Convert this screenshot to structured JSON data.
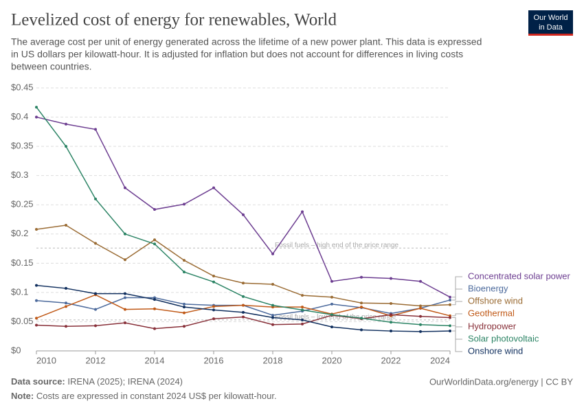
{
  "chart_data": {
    "type": "line",
    "title": "Levelized cost of energy for renewables, World",
    "subtitle": [
      "The average cost per unit of energy generated across the lifetime of a new power plant. This data is expressed",
      "in US dollars per kilowatt-hour. It is adjusted for inflation but does not account for differences in living costs",
      "between countries."
    ],
    "logo": [
      "Our World",
      "in Data"
    ],
    "x": [
      2010,
      2011,
      2012,
      2013,
      2014,
      2015,
      2016,
      2017,
      2018,
      2019,
      2020,
      2021,
      2022,
      2023,
      2024
    ],
    "xlim": [
      2010,
      2024
    ],
    "xticks": [
      2010,
      2012,
      2014,
      2016,
      2018,
      2020,
      2022,
      2024
    ],
    "ylim": [
      0,
      0.45
    ],
    "yticks": [
      {
        "value": 0,
        "label": "$0"
      },
      {
        "value": 0.05,
        "label": "$0.05"
      },
      {
        "value": 0.1,
        "label": "$0.1"
      },
      {
        "value": 0.15,
        "label": "$0.15"
      },
      {
        "value": 0.2,
        "label": "$0.2"
      },
      {
        "value": 0.25,
        "label": "$0.25"
      },
      {
        "value": 0.3,
        "label": "$0.3"
      },
      {
        "value": 0.35,
        "label": "$0.35"
      },
      {
        "value": 0.4,
        "label": "$0.4"
      },
      {
        "value": 0.45,
        "label": "$0.45"
      }
    ],
    "grid": true,
    "reference_lines": [
      {
        "label": "Fossil fuels – high end of the price range",
        "value": 0.176
      },
      {
        "label": "Fossil fuels – low end of the price range",
        "value": 0.053
      }
    ],
    "series": [
      {
        "name": "Concentrated solar power",
        "color": "#6d3e91",
        "values": [
          0.4,
          0.388,
          0.379,
          0.279,
          0.242,
          0.251,
          0.279,
          0.233,
          0.166,
          0.238,
          0.119,
          0.126,
          0.124,
          0.119,
          0.092
        ]
      },
      {
        "name": "Bioenergy",
        "color": "#4c6a9c",
        "values": [
          0.086,
          0.082,
          0.071,
          0.091,
          0.091,
          0.08,
          0.078,
          0.078,
          0.061,
          0.068,
          0.08,
          0.074,
          0.064,
          0.073,
          0.087
        ]
      },
      {
        "name": "Offshore wind",
        "color": "#9a6b33",
        "values": [
          0.208,
          0.215,
          0.184,
          0.156,
          0.19,
          0.155,
          0.128,
          0.116,
          0.114,
          0.095,
          0.092,
          0.082,
          0.081,
          0.077,
          0.079
        ]
      },
      {
        "name": "Geothermal",
        "color": "#c05917",
        "values": [
          0.056,
          0.076,
          0.096,
          0.071,
          0.072,
          0.065,
          0.076,
          0.078,
          0.075,
          0.075,
          0.063,
          0.075,
          0.06,
          0.073,
          0.06
        ]
      },
      {
        "name": "Hydropower",
        "color": "#883039",
        "values": [
          0.044,
          0.042,
          0.043,
          0.048,
          0.038,
          0.042,
          0.055,
          0.058,
          0.045,
          0.046,
          0.061,
          0.055,
          0.062,
          0.059,
          0.057
        ]
      },
      {
        "name": "Solar photovoltaic",
        "color": "#2c8465",
        "values": [
          0.417,
          0.35,
          0.26,
          0.2,
          0.183,
          0.135,
          0.118,
          0.093,
          0.078,
          0.07,
          0.062,
          0.056,
          0.049,
          0.045,
          0.043
        ]
      },
      {
        "name": "Onshore wind",
        "color": "#102f5e",
        "values": [
          0.112,
          0.107,
          0.098,
          0.098,
          0.088,
          0.075,
          0.07,
          0.066,
          0.057,
          0.053,
          0.041,
          0.036,
          0.034,
          0.033,
          0.034
        ]
      }
    ],
    "source_label": "Data source:",
    "source": "IRENA (2025); IRENA (2024)",
    "url": "OurWorldinData.org/energy | CC BY",
    "note_label": "Note:",
    "note": "Costs are expressed in constant 2024 US$ per kilowatt-hour."
  }
}
